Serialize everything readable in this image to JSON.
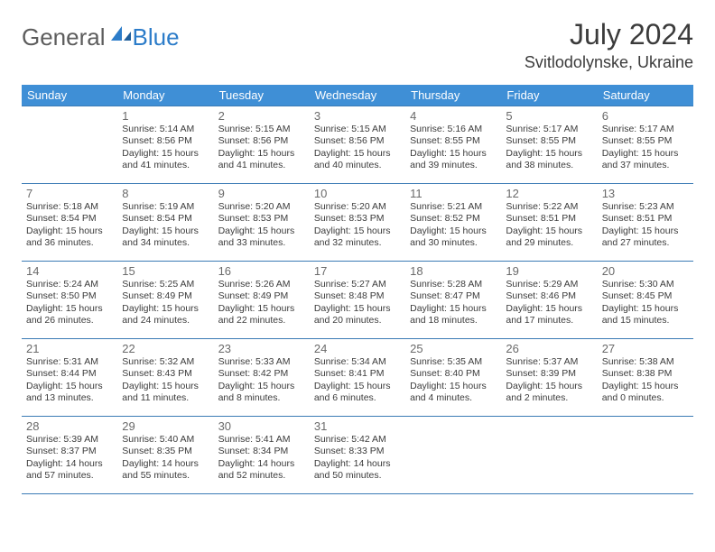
{
  "logo": {
    "general": "General",
    "blue": "Blue"
  },
  "title": {
    "month": "July 2024",
    "location": "Svitlodolynske, Ukraine"
  },
  "colors": {
    "header_bg": "#3f8fd6",
    "header_text": "#ffffff",
    "cell_border": "#3b7bb5",
    "text": "#3b3b3b",
    "daynum": "#6a6a6a",
    "logo_blue": "#2c7cc9",
    "logo_gray": "#5d5d5d"
  },
  "weekdays": [
    "Sunday",
    "Monday",
    "Tuesday",
    "Wednesday",
    "Thursday",
    "Friday",
    "Saturday"
  ],
  "weeks": [
    [
      null,
      {
        "n": "1",
        "sr": "Sunrise: 5:14 AM",
        "ss": "Sunset: 8:56 PM",
        "d1": "Daylight: 15 hours",
        "d2": "and 41 minutes."
      },
      {
        "n": "2",
        "sr": "Sunrise: 5:15 AM",
        "ss": "Sunset: 8:56 PM",
        "d1": "Daylight: 15 hours",
        "d2": "and 41 minutes."
      },
      {
        "n": "3",
        "sr": "Sunrise: 5:15 AM",
        "ss": "Sunset: 8:56 PM",
        "d1": "Daylight: 15 hours",
        "d2": "and 40 minutes."
      },
      {
        "n": "4",
        "sr": "Sunrise: 5:16 AM",
        "ss": "Sunset: 8:55 PM",
        "d1": "Daylight: 15 hours",
        "d2": "and 39 minutes."
      },
      {
        "n": "5",
        "sr": "Sunrise: 5:17 AM",
        "ss": "Sunset: 8:55 PM",
        "d1": "Daylight: 15 hours",
        "d2": "and 38 minutes."
      },
      {
        "n": "6",
        "sr": "Sunrise: 5:17 AM",
        "ss": "Sunset: 8:55 PM",
        "d1": "Daylight: 15 hours",
        "d2": "and 37 minutes."
      }
    ],
    [
      {
        "n": "7",
        "sr": "Sunrise: 5:18 AM",
        "ss": "Sunset: 8:54 PM",
        "d1": "Daylight: 15 hours",
        "d2": "and 36 minutes."
      },
      {
        "n": "8",
        "sr": "Sunrise: 5:19 AM",
        "ss": "Sunset: 8:54 PM",
        "d1": "Daylight: 15 hours",
        "d2": "and 34 minutes."
      },
      {
        "n": "9",
        "sr": "Sunrise: 5:20 AM",
        "ss": "Sunset: 8:53 PM",
        "d1": "Daylight: 15 hours",
        "d2": "and 33 minutes."
      },
      {
        "n": "10",
        "sr": "Sunrise: 5:20 AM",
        "ss": "Sunset: 8:53 PM",
        "d1": "Daylight: 15 hours",
        "d2": "and 32 minutes."
      },
      {
        "n": "11",
        "sr": "Sunrise: 5:21 AM",
        "ss": "Sunset: 8:52 PM",
        "d1": "Daylight: 15 hours",
        "d2": "and 30 minutes."
      },
      {
        "n": "12",
        "sr": "Sunrise: 5:22 AM",
        "ss": "Sunset: 8:51 PM",
        "d1": "Daylight: 15 hours",
        "d2": "and 29 minutes."
      },
      {
        "n": "13",
        "sr": "Sunrise: 5:23 AM",
        "ss": "Sunset: 8:51 PM",
        "d1": "Daylight: 15 hours",
        "d2": "and 27 minutes."
      }
    ],
    [
      {
        "n": "14",
        "sr": "Sunrise: 5:24 AM",
        "ss": "Sunset: 8:50 PM",
        "d1": "Daylight: 15 hours",
        "d2": "and 26 minutes."
      },
      {
        "n": "15",
        "sr": "Sunrise: 5:25 AM",
        "ss": "Sunset: 8:49 PM",
        "d1": "Daylight: 15 hours",
        "d2": "and 24 minutes."
      },
      {
        "n": "16",
        "sr": "Sunrise: 5:26 AM",
        "ss": "Sunset: 8:49 PM",
        "d1": "Daylight: 15 hours",
        "d2": "and 22 minutes."
      },
      {
        "n": "17",
        "sr": "Sunrise: 5:27 AM",
        "ss": "Sunset: 8:48 PM",
        "d1": "Daylight: 15 hours",
        "d2": "and 20 minutes."
      },
      {
        "n": "18",
        "sr": "Sunrise: 5:28 AM",
        "ss": "Sunset: 8:47 PM",
        "d1": "Daylight: 15 hours",
        "d2": "and 18 minutes."
      },
      {
        "n": "19",
        "sr": "Sunrise: 5:29 AM",
        "ss": "Sunset: 8:46 PM",
        "d1": "Daylight: 15 hours",
        "d2": "and 17 minutes."
      },
      {
        "n": "20",
        "sr": "Sunrise: 5:30 AM",
        "ss": "Sunset: 8:45 PM",
        "d1": "Daylight: 15 hours",
        "d2": "and 15 minutes."
      }
    ],
    [
      {
        "n": "21",
        "sr": "Sunrise: 5:31 AM",
        "ss": "Sunset: 8:44 PM",
        "d1": "Daylight: 15 hours",
        "d2": "and 13 minutes."
      },
      {
        "n": "22",
        "sr": "Sunrise: 5:32 AM",
        "ss": "Sunset: 8:43 PM",
        "d1": "Daylight: 15 hours",
        "d2": "and 11 minutes."
      },
      {
        "n": "23",
        "sr": "Sunrise: 5:33 AM",
        "ss": "Sunset: 8:42 PM",
        "d1": "Daylight: 15 hours",
        "d2": "and 8 minutes."
      },
      {
        "n": "24",
        "sr": "Sunrise: 5:34 AM",
        "ss": "Sunset: 8:41 PM",
        "d1": "Daylight: 15 hours",
        "d2": "and 6 minutes."
      },
      {
        "n": "25",
        "sr": "Sunrise: 5:35 AM",
        "ss": "Sunset: 8:40 PM",
        "d1": "Daylight: 15 hours",
        "d2": "and 4 minutes."
      },
      {
        "n": "26",
        "sr": "Sunrise: 5:37 AM",
        "ss": "Sunset: 8:39 PM",
        "d1": "Daylight: 15 hours",
        "d2": "and 2 minutes."
      },
      {
        "n": "27",
        "sr": "Sunrise: 5:38 AM",
        "ss": "Sunset: 8:38 PM",
        "d1": "Daylight: 15 hours",
        "d2": "and 0 minutes."
      }
    ],
    [
      {
        "n": "28",
        "sr": "Sunrise: 5:39 AM",
        "ss": "Sunset: 8:37 PM",
        "d1": "Daylight: 14 hours",
        "d2": "and 57 minutes."
      },
      {
        "n": "29",
        "sr": "Sunrise: 5:40 AM",
        "ss": "Sunset: 8:35 PM",
        "d1": "Daylight: 14 hours",
        "d2": "and 55 minutes."
      },
      {
        "n": "30",
        "sr": "Sunrise: 5:41 AM",
        "ss": "Sunset: 8:34 PM",
        "d1": "Daylight: 14 hours",
        "d2": "and 52 minutes."
      },
      {
        "n": "31",
        "sr": "Sunrise: 5:42 AM",
        "ss": "Sunset: 8:33 PM",
        "d1": "Daylight: 14 hours",
        "d2": "and 50 minutes."
      },
      null,
      null,
      null
    ]
  ]
}
